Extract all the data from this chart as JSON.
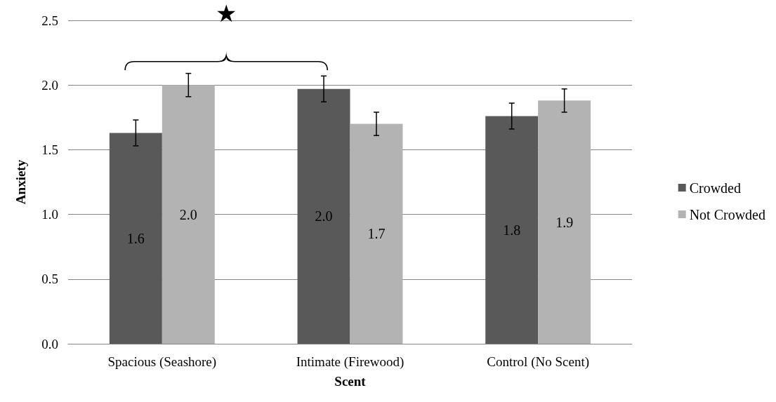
{
  "chart_data": {
    "type": "bar",
    "xlabel": "Scent",
    "ylabel": "Anxiety",
    "categories": [
      "Spacious (Seashore)",
      "Intimate (Firewood)",
      "Control (No Scent)"
    ],
    "series": [
      {
        "name": "Crowded",
        "color": "#595959",
        "values": [
          1.63,
          1.97,
          1.76
        ],
        "errors": [
          0.1,
          0.1,
          0.1
        ],
        "value_labels": [
          "1.6",
          "2.0",
          "1.8"
        ]
      },
      {
        "name": "Not Crowded",
        "color": "#b3b3b3",
        "values": [
          2.0,
          1.7,
          1.88
        ],
        "errors": [
          0.09,
          0.09,
          0.09
        ],
        "value_labels": [
          "2.0",
          "1.7",
          "1.9"
        ]
      }
    ],
    "ylim": [
      0,
      2.5
    ],
    "yticks": [
      {
        "value": 0,
        "label": "0.0"
      },
      {
        "value": 0.5,
        "label": "0.5"
      },
      {
        "value": 1,
        "label": "1.0"
      },
      {
        "value": 1.5,
        "label": "1.5"
      },
      {
        "value": 2,
        "label": "2.0"
      },
      {
        "value": 2.5,
        "label": "2.5"
      }
    ],
    "grid": "y",
    "legend": "right",
    "annotations": [
      "★"
    ]
  }
}
